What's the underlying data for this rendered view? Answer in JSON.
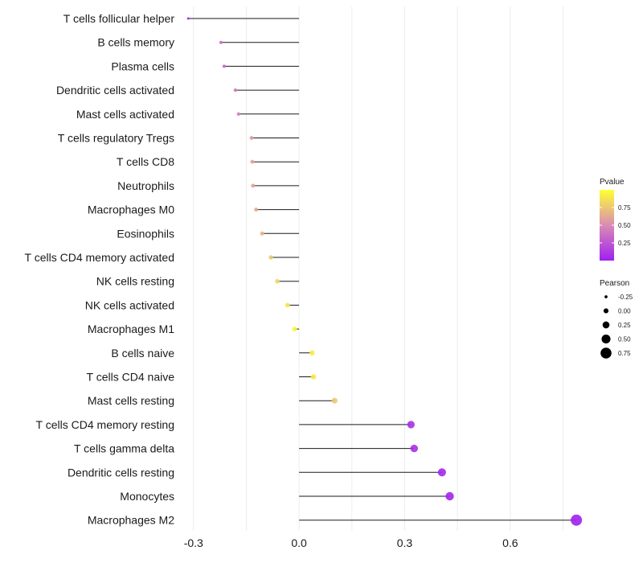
{
  "chart_data": {
    "type": "lollipop",
    "categories": [
      "T cells follicular helper",
      "B cells memory",
      "Plasma cells",
      "Dendritic cells activated",
      "Mast cells activated",
      "T cells regulatory  Tregs",
      "T cells CD8",
      "Neutrophils",
      "Macrophages M0",
      "Eosinophils",
      "T cells CD4 memory activated",
      "NK cells resting",
      "NK cells activated",
      "Macrophages M1",
      "B cells naive",
      "T cells CD4 naive",
      "Mast cells resting",
      "T cells CD4 memory resting",
      "T cells gamma delta",
      "Dendritic cells resting",
      "Monocytes",
      "Macrophages M2"
    ],
    "pearson": [
      -0.315,
      -0.222,
      -0.213,
      -0.181,
      -0.172,
      -0.135,
      -0.133,
      -0.131,
      -0.122,
      -0.105,
      -0.08,
      -0.062,
      -0.033,
      -0.013,
      0.037,
      0.041,
      0.101,
      0.318,
      0.327,
      0.406,
      0.428,
      0.788
    ],
    "pvalue": [
      0.02,
      0.35,
      0.33,
      0.42,
      0.45,
      0.58,
      0.59,
      0.6,
      0.63,
      0.68,
      0.76,
      0.82,
      0.9,
      0.96,
      0.92,
      0.91,
      0.76,
      0.08,
      0.07,
      0.04,
      0.03,
      0.0
    ],
    "xlim": [
      -0.32,
      0.79
    ],
    "x_ticks": [
      -0.3,
      0.0,
      0.3,
      0.6
    ],
    "x_tick_labels": [
      "-0.3",
      "0.0",
      "0.3",
      "0.6"
    ],
    "xlabel": "",
    "ylabel": "",
    "grid": true,
    "legend_position": "right",
    "colorbar": {
      "title": "Pvalue",
      "ticks": [
        0.25,
        0.5,
        0.75
      ],
      "tick_labels": [
        "0.25",
        "0.50",
        "0.75"
      ],
      "range": [
        0.0,
        1.0
      ],
      "low_color": "#a020f0",
      "mid_color": "#d98cb3",
      "high_color": "#ffff33"
    },
    "size_legend": {
      "title": "Pearson",
      "values": [
        -0.25,
        0.0,
        0.25,
        0.5,
        0.75
      ],
      "labels": [
        "-0.25",
        "0.00",
        "0.25",
        "0.50",
        "0.75"
      ]
    }
  }
}
